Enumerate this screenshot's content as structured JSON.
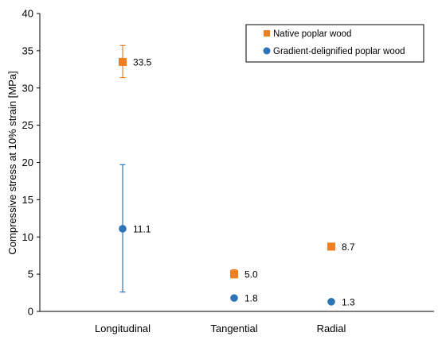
{
  "chart_data": {
    "type": "scatter",
    "title": "",
    "xlabel": "",
    "ylabel": "Compressive stress at 10% strain [MPa]",
    "ylim": [
      0,
      40
    ],
    "yticks": [
      0,
      5,
      10,
      15,
      20,
      25,
      30,
      35,
      40
    ],
    "grid": false,
    "legend_position": "top-right",
    "categories": [
      "Longitudinal",
      "Tangential",
      "Radial"
    ],
    "series": [
      {
        "name": "Native poplar wood",
        "marker": "square",
        "color": "#F07F22",
        "values": [
          33.5,
          5.0,
          8.7
        ],
        "labels": [
          "33.5",
          "5.0",
          "8.7"
        ],
        "err_low": [
          31.4,
          4.5,
          8.5
        ],
        "err_high": [
          35.7,
          5.6,
          8.9
        ]
      },
      {
        "name": "Gradient-delignified poplar wood",
        "marker": "circle",
        "color": "#2E74B5",
        "values": [
          11.1,
          1.8,
          1.3
        ],
        "labels": [
          "11.1",
          "1.8",
          "1.3"
        ],
        "err_low": [
          2.6,
          1.6,
          1.1
        ],
        "err_high": [
          19.7,
          2.0,
          1.5
        ]
      }
    ]
  }
}
